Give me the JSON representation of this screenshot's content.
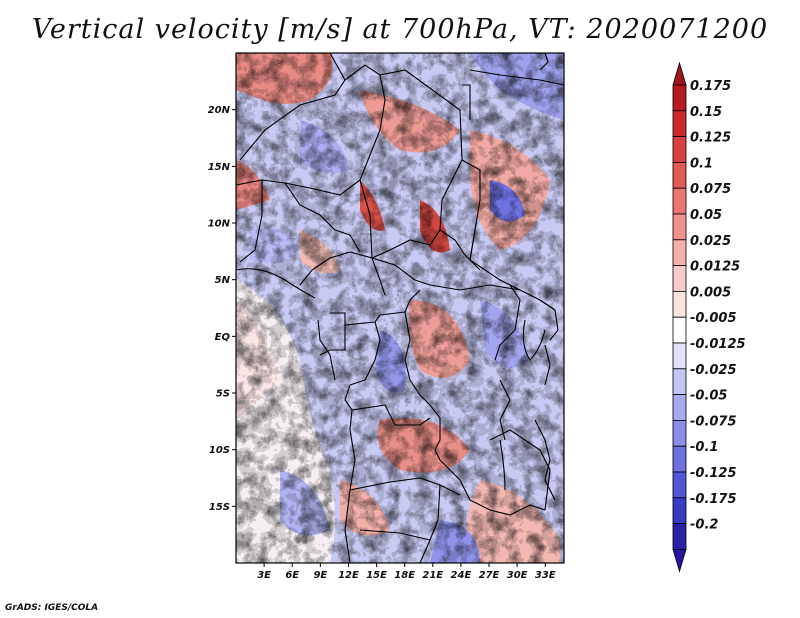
{
  "title": "Vertical velocity [m/s] at 700hPa, VT: 2020071200",
  "credit": "GrADS: IGES/COLA",
  "map": {
    "variable": "Vertical velocity",
    "units": "m/s",
    "level": "700hPa",
    "valid_time": "2020071200",
    "lon_range": [
      0,
      35
    ],
    "lat_range": [
      -20,
      25
    ],
    "lat_ticks": [
      {
        "value": 20,
        "label": "20N"
      },
      {
        "value": 15,
        "label": "15N"
      },
      {
        "value": 10,
        "label": "10N"
      },
      {
        "value": 5,
        "label": "5N"
      },
      {
        "value": 0,
        "label": "EQ"
      },
      {
        "value": -5,
        "label": "5S"
      },
      {
        "value": -10,
        "label": "10S"
      },
      {
        "value": -15,
        "label": "15S"
      }
    ],
    "lon_ticks": [
      {
        "value": 3,
        "label": "3E"
      },
      {
        "value": 6,
        "label": "6E"
      },
      {
        "value": 9,
        "label": "9E"
      },
      {
        "value": 12,
        "label": "12E"
      },
      {
        "value": 15,
        "label": "15E"
      },
      {
        "value": 18,
        "label": "18E"
      },
      {
        "value": 21,
        "label": "21E"
      },
      {
        "value": 24,
        "label": "24E"
      },
      {
        "value": 27,
        "label": "27E"
      },
      {
        "value": 30,
        "label": "30E"
      },
      {
        "value": 33,
        "label": "33E"
      }
    ]
  },
  "colorbar": {
    "levels": [
      {
        "label": "0.175",
        "color": "#b81b1f"
      },
      {
        "label": "0.15",
        "color": "#cc2a2a"
      },
      {
        "label": "0.125",
        "color": "#d94141"
      },
      {
        "label": "0.1",
        "color": "#e25a55"
      },
      {
        "label": "0.075",
        "color": "#e97670"
      },
      {
        "label": "0.05",
        "color": "#f0938c"
      },
      {
        "label": "0.025",
        "color": "#f5b0aa"
      },
      {
        "label": "0.0125",
        "color": "#f9cbc6"
      },
      {
        "label": "0.005",
        "color": "#fce4e0"
      },
      {
        "label": "-0.005",
        "color": "#ffffff"
      },
      {
        "label": "-0.0125",
        "color": "#dfe0fb"
      },
      {
        "label": "-0.025",
        "color": "#c3c5f6"
      },
      {
        "label": "-0.05",
        "color": "#a7aaf0"
      },
      {
        "label": "-0.075",
        "color": "#8b8ee9"
      },
      {
        "label": "-0.1",
        "color": "#6e71e0"
      },
      {
        "label": "-0.125",
        "color": "#5255d4"
      },
      {
        "label": "-0.175",
        "color": "#383bc4"
      },
      {
        "label": "-0.2",
        "color": "#2a21a8"
      }
    ],
    "top_arrow_color": "#a0161a",
    "bottom_arrow_color": "#2414a0"
  }
}
